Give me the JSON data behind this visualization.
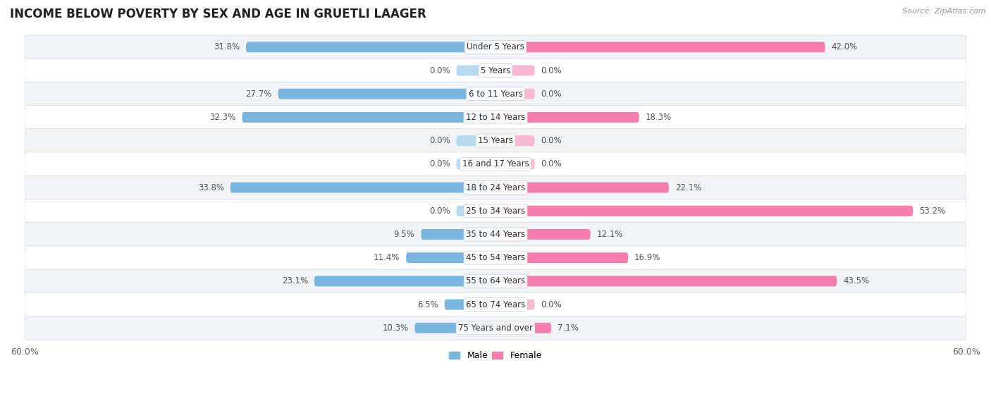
{
  "title": "INCOME BELOW POVERTY BY SEX AND AGE IN GRUETLI LAAGER",
  "source": "Source: ZipAtlas.com",
  "categories": [
    "Under 5 Years",
    "5 Years",
    "6 to 11 Years",
    "12 to 14 Years",
    "15 Years",
    "16 and 17 Years",
    "18 to 24 Years",
    "25 to 34 Years",
    "35 to 44 Years",
    "45 to 54 Years",
    "55 to 64 Years",
    "65 to 74 Years",
    "75 Years and over"
  ],
  "male": [
    31.8,
    0.0,
    27.7,
    32.3,
    0.0,
    0.0,
    33.8,
    0.0,
    9.5,
    11.4,
    23.1,
    6.5,
    10.3
  ],
  "female": [
    42.0,
    0.0,
    0.0,
    18.3,
    0.0,
    0.0,
    22.1,
    53.2,
    12.1,
    16.9,
    43.5,
    0.0,
    7.1
  ],
  "male_color": "#7ab5de",
  "male_color_light": "#b8d9ef",
  "female_color": "#f47eb0",
  "female_color_light": "#f9b8d3",
  "xlim": 60.0,
  "bar_height": 0.45,
  "stub_size": 5.0,
  "row_bg_even": "#f0f4f8",
  "row_bg_odd": "#ffffff",
  "label_fontsize": 8.5,
  "value_fontsize": 8.5
}
